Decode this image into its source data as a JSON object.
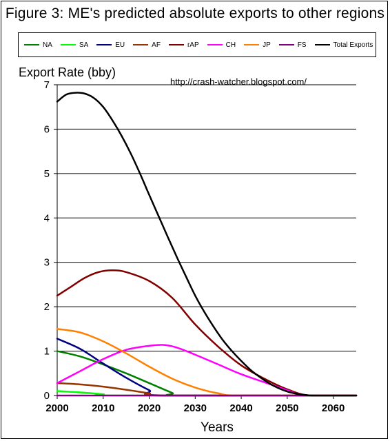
{
  "title": "Figure 3: ME's predicted absolute exports to other regions",
  "watermark": "http://crash-watcher.blogspot.com/",
  "chart_data": {
    "type": "line",
    "title": "Figure 3: ME's predicted absolute exports to other regions",
    "ylabel": "Export Rate (bby)",
    "xlabel": "Years",
    "xlim": [
      2000,
      2065
    ],
    "ylim": [
      0,
      7
    ],
    "xticks": [
      2000,
      2010,
      2020,
      2030,
      2040,
      2050,
      2060
    ],
    "yticks": [
      0,
      1,
      2,
      3,
      4,
      5,
      6,
      7
    ],
    "grid": "horizontal",
    "legend_position": "top",
    "series": [
      {
        "name": "NA",
        "color": "#008000",
        "points": [
          [
            2000,
            1.0
          ],
          [
            2005,
            0.88
          ],
          [
            2010,
            0.7
          ],
          [
            2015,
            0.5
          ],
          [
            2020,
            0.28
          ],
          [
            2025,
            0.06
          ],
          [
            2027,
            0.0
          ],
          [
            2065,
            0.0
          ]
        ]
      },
      {
        "name": "SA",
        "color": "#00ff00",
        "points": [
          [
            2000,
            0.1
          ],
          [
            2005,
            0.07
          ],
          [
            2010,
            0.03
          ],
          [
            2013,
            0.0
          ],
          [
            2065,
            0.0
          ]
        ]
      },
      {
        "name": "EU",
        "color": "#000080",
        "points": [
          [
            2000,
            1.28
          ],
          [
            2005,
            1.05
          ],
          [
            2010,
            0.72
          ],
          [
            2015,
            0.4
          ],
          [
            2020,
            0.12
          ],
          [
            2023,
            0.0
          ],
          [
            2065,
            0.0
          ]
        ]
      },
      {
        "name": "AF",
        "color": "#993300",
        "points": [
          [
            2000,
            0.28
          ],
          [
            2005,
            0.25
          ],
          [
            2010,
            0.2
          ],
          [
            2015,
            0.13
          ],
          [
            2020,
            0.05
          ],
          [
            2023,
            0.0
          ],
          [
            2065,
            0.0
          ]
        ]
      },
      {
        "name": "rAP",
        "color": "#800000",
        "points": [
          [
            2000,
            2.25
          ],
          [
            2003,
            2.45
          ],
          [
            2006,
            2.65
          ],
          [
            2009,
            2.78
          ],
          [
            2012,
            2.82
          ],
          [
            2015,
            2.78
          ],
          [
            2020,
            2.58
          ],
          [
            2025,
            2.2
          ],
          [
            2030,
            1.6
          ],
          [
            2035,
            1.1
          ],
          [
            2040,
            0.68
          ],
          [
            2045,
            0.38
          ],
          [
            2050,
            0.14
          ],
          [
            2055,
            0.0
          ],
          [
            2065,
            0.0
          ]
        ]
      },
      {
        "name": "CH",
        "color": "#ff00ff",
        "points": [
          [
            2000,
            0.28
          ],
          [
            2005,
            0.55
          ],
          [
            2010,
            0.82
          ],
          [
            2015,
            1.03
          ],
          [
            2020,
            1.12
          ],
          [
            2023,
            1.14
          ],
          [
            2026,
            1.08
          ],
          [
            2030,
            0.92
          ],
          [
            2035,
            0.7
          ],
          [
            2040,
            0.48
          ],
          [
            2045,
            0.3
          ],
          [
            2050,
            0.12
          ],
          [
            2054,
            0.0
          ],
          [
            2065,
            0.0
          ]
        ]
      },
      {
        "name": "JP",
        "color": "#ff8000",
        "points": [
          [
            2000,
            1.5
          ],
          [
            2005,
            1.42
          ],
          [
            2010,
            1.22
          ],
          [
            2015,
            0.95
          ],
          [
            2020,
            0.65
          ],
          [
            2025,
            0.38
          ],
          [
            2030,
            0.18
          ],
          [
            2035,
            0.05
          ],
          [
            2040,
            0.0
          ],
          [
            2065,
            0.0
          ]
        ]
      },
      {
        "name": "FS",
        "color": "#800080",
        "points": [
          [
            2000,
            0.0
          ],
          [
            2065,
            0.0
          ]
        ]
      },
      {
        "name": "Total Exports",
        "color": "#000000",
        "points": [
          [
            2000,
            6.62
          ],
          [
            2002,
            6.78
          ],
          [
            2004,
            6.82
          ],
          [
            2006,
            6.8
          ],
          [
            2008,
            6.7
          ],
          [
            2010,
            6.5
          ],
          [
            2012,
            6.2
          ],
          [
            2014,
            5.85
          ],
          [
            2016,
            5.45
          ],
          [
            2018,
            5.0
          ],
          [
            2020,
            4.52
          ],
          [
            2022,
            4.05
          ],
          [
            2024,
            3.58
          ],
          [
            2026,
            3.12
          ],
          [
            2028,
            2.68
          ],
          [
            2030,
            2.25
          ],
          [
            2032,
            1.88
          ],
          [
            2034,
            1.55
          ],
          [
            2036,
            1.25
          ],
          [
            2038,
            1.0
          ],
          [
            2040,
            0.78
          ],
          [
            2042,
            0.58
          ],
          [
            2044,
            0.42
          ],
          [
            2046,
            0.28
          ],
          [
            2048,
            0.17
          ],
          [
            2050,
            0.09
          ],
          [
            2052,
            0.04
          ],
          [
            2054,
            0.01
          ],
          [
            2056,
            0.0
          ],
          [
            2065,
            0.0
          ]
        ]
      }
    ]
  }
}
